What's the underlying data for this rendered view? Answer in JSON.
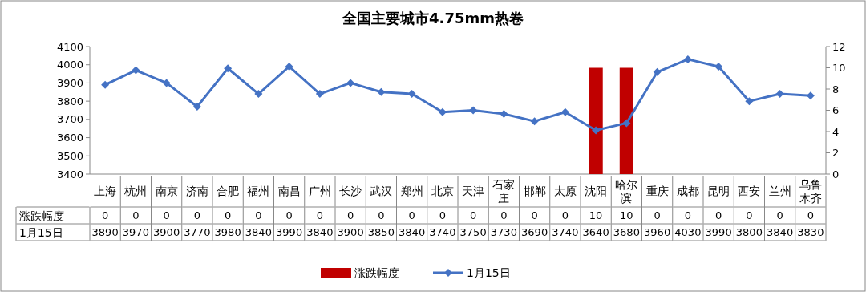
{
  "chart_data": {
    "type": "line",
    "title": "全国主要城市4.75mm热卷",
    "categories": [
      "上海",
      "杭州",
      "南京",
      "济南",
      "合肥",
      "福州",
      "南昌",
      "广州",
      "长沙",
      "武汉",
      "郑州",
      "北京",
      "天津",
      "石家庄",
      "邯郸",
      "太原",
      "沈阳",
      "哈尔滨",
      "重庆",
      "成都",
      "昆明",
      "西安",
      "兰州",
      "乌鲁木齐"
    ],
    "series": [
      {
        "name": "涨跌幅度",
        "type": "bar",
        "axis": "y2",
        "color": "#c00000",
        "values": [
          0,
          0,
          0,
          0,
          0,
          0,
          0,
          0,
          0,
          0,
          0,
          0,
          0,
          0,
          0,
          0,
          10,
          10,
          0,
          0,
          0,
          0,
          0,
          0
        ]
      },
      {
        "name": "1月15日",
        "color": "#4472c4",
        "values": [
          3890,
          3970,
          3900,
          3770,
          3980,
          3840,
          3990,
          3840,
          3900,
          3850,
          3840,
          3740,
          3750,
          3730,
          3690,
          3740,
          3640,
          3680,
          3960,
          4030,
          3990,
          3800,
          3840,
          3830
        ]
      }
    ],
    "ylim": [
      3400,
      4100
    ],
    "yticks": [
      3400,
      3500,
      3600,
      3700,
      3800,
      3900,
      4000,
      4100
    ],
    "y2lim": [
      0,
      12
    ],
    "y2ticks": [
      0,
      2,
      4,
      6,
      8,
      10,
      12
    ],
    "legend": "bottom",
    "marker": "diamond",
    "data_labels": true
  }
}
